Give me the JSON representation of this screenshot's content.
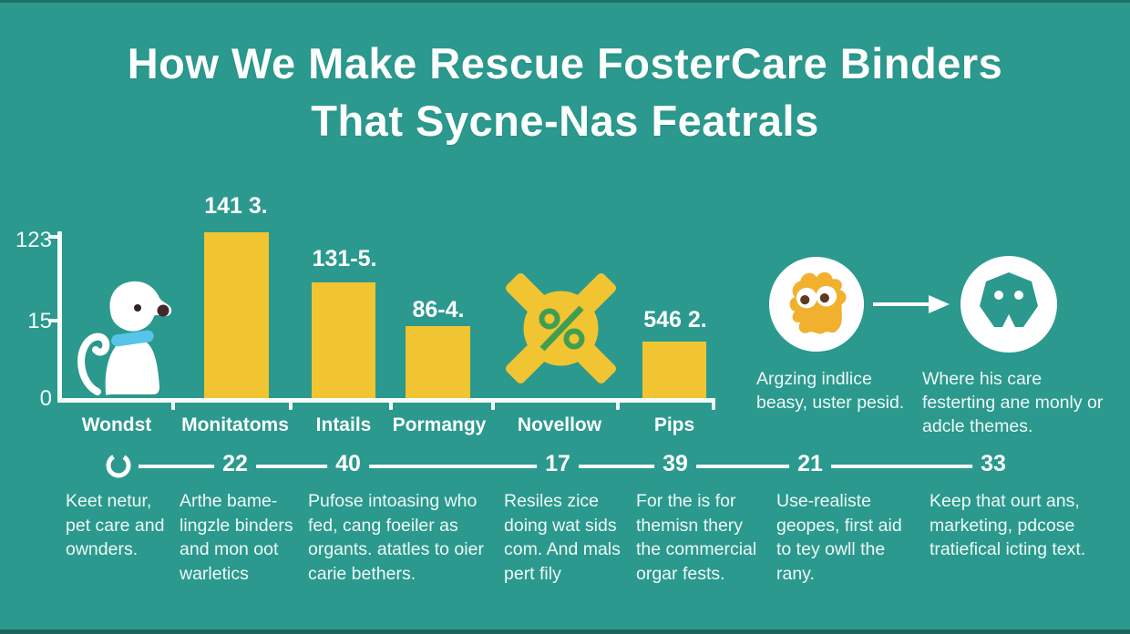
{
  "title": {
    "line1": "How We Make Rescue FosterCare Binders",
    "line2": "That Sycne-Nas Featrals"
  },
  "colors": {
    "background": "#2b998d",
    "bar_yellow": "#f1c431",
    "blob_yellow": "#f2b02f",
    "collar_blue": "#58c4ea",
    "percent_green": "#3f9e52",
    "text_white": "#fdfefe"
  },
  "chart_data": {
    "type": "bar",
    "title": "",
    "xlabel": "",
    "ylabel": "",
    "categories": [
      "Wondst",
      "Monitatoms",
      "Intails",
      "Pormangy",
      "Novellow",
      "Pips"
    ],
    "values": [
      null,
      129,
      90,
      56,
      null,
      44
    ],
    "bar_labels": [
      "",
      "141 3.",
      "131-5.",
      "86-4.",
      "",
      "546 2."
    ],
    "y_ticks": [
      "123",
      "15",
      "0"
    ],
    "ylim": [
      0,
      123
    ],
    "grid": false,
    "legend": false,
    "bar_color": "#f1c431",
    "annotations": [
      {
        "category": "Wondst",
        "marker": "dog-illustration"
      },
      {
        "category": "Novellow",
        "marker": "percent-cross-icon"
      }
    ]
  },
  "icons": {
    "dog": "dog-illustration",
    "percent_cross": "percent-cross-icon",
    "pet_blob": "pet-blob-icon",
    "arrow": "arrow-right-icon",
    "pet_face": "pet-face-icon",
    "power": "power-circle-icon"
  },
  "callouts": {
    "left": "Argzing indlice beasy, uster pesid.",
    "right": "Where his care festerting ane monly or adcle themes."
  },
  "timeline": {
    "numbers": [
      "22",
      "40",
      "17",
      "39",
      "21",
      "33"
    ]
  },
  "steps": [
    "Keet netur, pet care and ownders.",
    "Arthe bame-lingzle binders and mon oot warletics",
    "Pufose intoasing who fed, cang foeiler as organts. atatles to oier carie bethers.",
    "Resiles zice doing wat sids com. And mals pert fily",
    "For the is for themisn thery the commercial orgar fests.",
    "Use-realiste geopes, first aid to tey owll the rany.",
    "Keep that ourt ans, marketing, pdcose tratiefical icting text."
  ]
}
